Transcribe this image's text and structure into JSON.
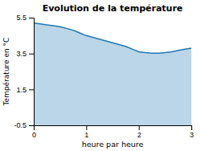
{
  "chart_data": {
    "type": "area",
    "title": "Evolution de la température",
    "x_label": "heure par heure",
    "y_label": "Température en °C",
    "x": [
      0,
      0.125,
      0.25,
      0.375,
      0.5,
      0.625,
      0.75,
      0.875,
      1.0,
      1.125,
      1.25,
      1.375,
      1.5,
      1.625,
      1.75,
      1.875,
      2.0,
      2.125,
      2.25,
      2.375,
      2.5,
      2.625,
      2.75,
      2.875,
      3.0
    ],
    "values": [
      5.2,
      5.15,
      5.1,
      5.05,
      5.0,
      4.9,
      4.8,
      4.65,
      4.5,
      4.4,
      4.3,
      4.2,
      4.1,
      4.0,
      3.9,
      3.75,
      3.6,
      3.55,
      3.52,
      3.52,
      3.55,
      3.6,
      3.68,
      3.74,
      3.8
    ],
    "baseline": -0.5,
    "xlim": [
      0,
      3
    ],
    "ylim": [
      -0.5,
      5.5
    ],
    "xticks": [
      0,
      1,
      2,
      3
    ],
    "yticks": [
      -0.5,
      1.5,
      3.5,
      5.5
    ],
    "grid": false
  }
}
